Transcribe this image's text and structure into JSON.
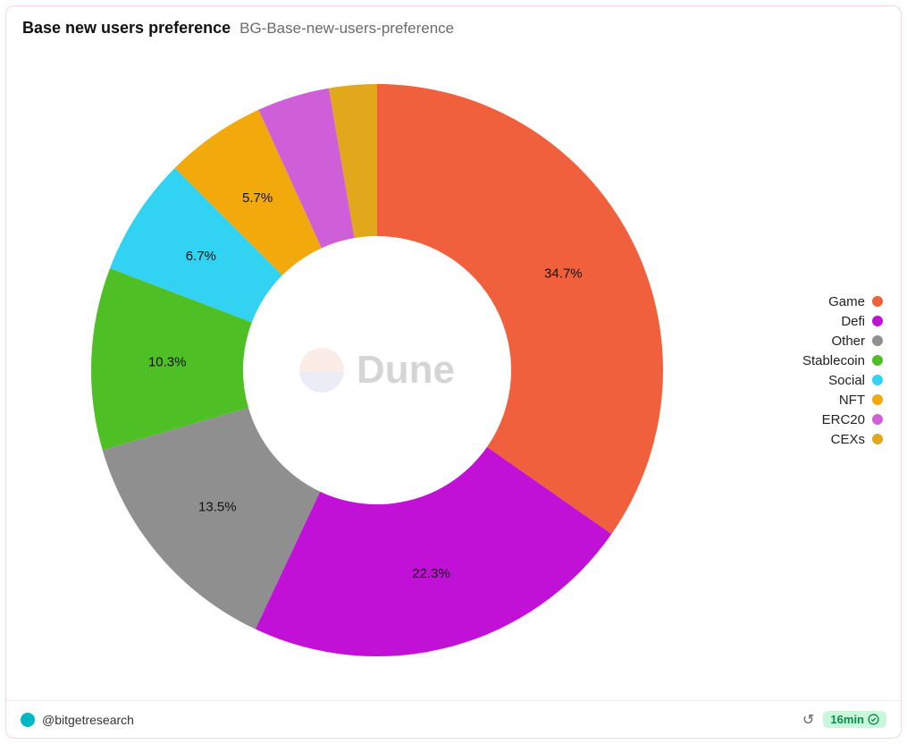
{
  "header": {
    "title": "Base new users preference",
    "subtitle": "BG-Base-new-users-preference"
  },
  "chart": {
    "type": "donut",
    "outer_radius": 320,
    "inner_radius": 150,
    "start_angle_deg": 0,
    "background_color": "#ffffff",
    "label_fontsize": 15,
    "label_color": "#111111",
    "label_min_percent": 5.0,
    "slices": [
      {
        "name": "Game",
        "value": 34.7,
        "color": "#f1603c",
        "label": "34.7%"
      },
      {
        "name": "Defi",
        "value": 22.3,
        "color": "#c211d6",
        "label": "22.3%"
      },
      {
        "name": "Other",
        "value": 13.5,
        "color": "#8f8f8f",
        "label": "13.5%"
      },
      {
        "name": "Stablecoin",
        "value": 10.3,
        "color": "#4fbf26",
        "label": "10.3%"
      },
      {
        "name": "Social",
        "value": 6.7,
        "color": "#32d2f2",
        "label": "6.7%"
      },
      {
        "name": "NFT",
        "value": 5.7,
        "color": "#f2a90c",
        "label": "5.7%"
      },
      {
        "name": "ERC20",
        "value": 4.1,
        "color": "#cf5fd8",
        "label": ""
      },
      {
        "name": "CEXs",
        "value": 2.7,
        "color": "#e0a81a",
        "label": ""
      }
    ]
  },
  "legend": {
    "fontsize": 15,
    "swatch_shape": "circle",
    "swatch_size": 12,
    "items": [
      {
        "label": "Game",
        "color": "#f1603c"
      },
      {
        "label": "Defi",
        "color": "#c211d6"
      },
      {
        "label": "Other",
        "color": "#8f8f8f"
      },
      {
        "label": "Stablecoin",
        "color": "#4fbf26"
      },
      {
        "label": "Social",
        "color": "#32d2f2"
      },
      {
        "label": "NFT",
        "color": "#f2a90c"
      },
      {
        "label": "ERC20",
        "color": "#cf5fd8"
      },
      {
        "label": "CEXs",
        "color": "#e0a81a"
      }
    ]
  },
  "watermark": {
    "text": "Dune",
    "logo_top_color": "#f6c9bd",
    "logo_bottom_color": "#c7cbe6",
    "text_color": "#8a8a8a",
    "fontsize": 44
  },
  "footer": {
    "author_handle": "@bitgetresearch",
    "author_avatar_color": "#00b8c4",
    "age_label": "16min",
    "age_pill_bg": "#c8f7dc",
    "age_pill_fg": "#0a8a4a"
  }
}
